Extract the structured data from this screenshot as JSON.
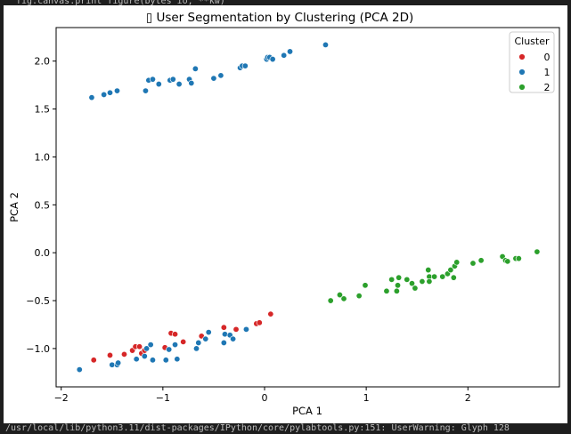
{
  "console": {
    "top_line": "fig.canvas.print_figure(bytes_io, **kw)",
    "bottom_line": "/usr/local/lib/python3.11/dist-packages/IPython/core/pylabtools.py:151: UserWarning: Glyph 128"
  },
  "chart_data": {
    "type": "scatter",
    "title": "▯ User Segmentation by Clustering (PCA 2D)",
    "xlabel": "PCA 1",
    "ylabel": "PCA 2",
    "xlim": [
      -2.05,
      2.9
    ],
    "ylim": [
      -1.4,
      2.35
    ],
    "x_ticks": [
      -2,
      -1,
      0,
      1,
      2
    ],
    "y_ticks": [
      -1.0,
      -0.5,
      0.0,
      0.5,
      1.0,
      1.5,
      2.0
    ],
    "x_tick_labels": [
      "−2",
      "−1",
      "0",
      "1",
      "2"
    ],
    "y_tick_labels": [
      "−1.0",
      "−0.5",
      "0.0",
      "0.5",
      "1.0",
      "1.5",
      "2.0"
    ],
    "grid": false,
    "legend": {
      "title": "Cluster",
      "placement": "top-right"
    },
    "series": [
      {
        "name": "0",
        "color": "#d62728",
        "points": [
          [
            -1.68,
            -1.12
          ],
          [
            -1.52,
            -1.07
          ],
          [
            -1.38,
            -1.06
          ],
          [
            -1.3,
            -1.02
          ],
          [
            -1.27,
            -0.98
          ],
          [
            -1.23,
            -0.98
          ],
          [
            -1.21,
            -1.05
          ],
          [
            -1.18,
            -1.02
          ],
          [
            -0.98,
            -0.99
          ],
          [
            -0.92,
            -0.84
          ],
          [
            -0.88,
            -0.85
          ],
          [
            -0.8,
            -0.93
          ],
          [
            -0.62,
            -0.87
          ],
          [
            -0.4,
            -0.78
          ],
          [
            -0.28,
            -0.8
          ],
          [
            -0.08,
            -0.74
          ],
          [
            -0.05,
            -0.73
          ],
          [
            0.06,
            -0.64
          ]
        ]
      },
      {
        "name": "1",
        "color": "#1f77b4",
        "points": [
          [
            -1.7,
            1.62
          ],
          [
            -1.58,
            1.65
          ],
          [
            -1.52,
            1.67
          ],
          [
            -1.45,
            1.69
          ],
          [
            -1.17,
            1.69
          ],
          [
            -1.14,
            1.8
          ],
          [
            -1.1,
            1.81
          ],
          [
            -1.04,
            1.76
          ],
          [
            -0.93,
            1.8
          ],
          [
            -0.9,
            1.81
          ],
          [
            -0.84,
            1.76
          ],
          [
            -0.74,
            1.81
          ],
          [
            -0.72,
            1.77
          ],
          [
            -0.68,
            1.92
          ],
          [
            -0.5,
            1.82
          ],
          [
            -0.43,
            1.85
          ],
          [
            -0.24,
            1.93
          ],
          [
            -0.22,
            1.95
          ],
          [
            -0.19,
            1.95
          ],
          [
            0.02,
            2.02
          ],
          [
            0.03,
            2.04
          ],
          [
            0.05,
            2.04
          ],
          [
            0.08,
            2.02
          ],
          [
            0.19,
            2.06
          ],
          [
            0.25,
            2.1
          ],
          [
            0.6,
            2.17
          ],
          [
            -1.82,
            -1.22
          ],
          [
            -1.5,
            -1.17
          ],
          [
            -1.45,
            -1.17
          ],
          [
            -1.44,
            -1.15
          ],
          [
            -1.26,
            -1.11
          ],
          [
            -1.18,
            -1.08
          ],
          [
            -1.16,
            -1.0
          ],
          [
            -1.12,
            -0.96
          ],
          [
            -1.1,
            -1.12
          ],
          [
            -0.97,
            -1.12
          ],
          [
            -0.94,
            -1.01
          ],
          [
            -0.88,
            -0.96
          ],
          [
            -0.86,
            -1.11
          ],
          [
            -0.67,
            -1.0
          ],
          [
            -0.65,
            -0.94
          ],
          [
            -0.58,
            -0.9
          ],
          [
            -0.55,
            -0.83
          ],
          [
            -0.4,
            -0.94
          ],
          [
            -0.39,
            -0.85
          ],
          [
            -0.34,
            -0.86
          ],
          [
            -0.31,
            -0.9
          ],
          [
            -0.18,
            -0.8
          ]
        ]
      },
      {
        "name": "2",
        "color": "#2ca02c",
        "points": [
          [
            0.65,
            -0.5
          ],
          [
            0.74,
            -0.44
          ],
          [
            0.78,
            -0.48
          ],
          [
            0.93,
            -0.45
          ],
          [
            0.99,
            -0.34
          ],
          [
            1.2,
            -0.4
          ],
          [
            1.25,
            -0.28
          ],
          [
            1.3,
            -0.4
          ],
          [
            1.31,
            -0.34
          ],
          [
            1.32,
            -0.26
          ],
          [
            1.4,
            -0.28
          ],
          [
            1.45,
            -0.32
          ],
          [
            1.48,
            -0.37
          ],
          [
            1.55,
            -0.3
          ],
          [
            1.61,
            -0.18
          ],
          [
            1.62,
            -0.25
          ],
          [
            1.62,
            -0.3
          ],
          [
            1.67,
            -0.25
          ],
          [
            1.75,
            -0.25
          ],
          [
            1.8,
            -0.22
          ],
          [
            1.83,
            -0.18
          ],
          [
            1.86,
            -0.26
          ],
          [
            1.87,
            -0.14
          ],
          [
            1.89,
            -0.1
          ],
          [
            2.05,
            -0.11
          ],
          [
            2.13,
            -0.08
          ],
          [
            2.34,
            -0.04
          ],
          [
            2.37,
            -0.08
          ],
          [
            2.39,
            -0.09
          ],
          [
            2.47,
            -0.06
          ],
          [
            2.5,
            -0.06
          ],
          [
            2.68,
            0.01
          ]
        ]
      }
    ]
  }
}
